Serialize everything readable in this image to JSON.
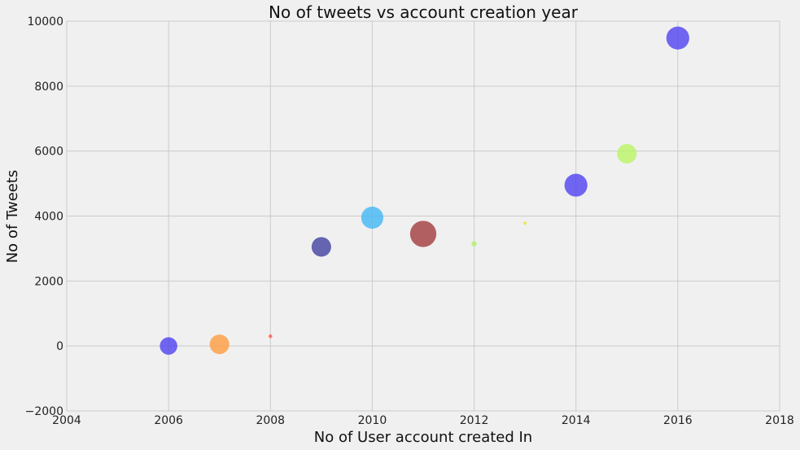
{
  "chart_data": {
    "type": "scatter",
    "title": "No of tweets vs account creation year",
    "xlabel": "No of User account created In",
    "ylabel": "No of Tweets",
    "xlim": [
      2004,
      2018
    ],
    "ylim": [
      -2000,
      10000
    ],
    "x_ticks": [
      "2004",
      "2006",
      "2008",
      "2010",
      "2012",
      "2014",
      "2016",
      "2018"
    ],
    "y_ticks": [
      "−2000",
      "0",
      "2000",
      "4000",
      "6000",
      "8000",
      "10000"
    ],
    "grid": true,
    "background_color": "#f0f0f0",
    "grid_color": "#cbcbcb",
    "points": [
      {
        "x": 2006,
        "y": 0,
        "color": "#4a3ef0",
        "size_rel": 0.42
      },
      {
        "x": 2007,
        "y": 50,
        "color": "#ff9a3c",
        "size_rel": 0.47
      },
      {
        "x": 2008,
        "y": 300,
        "color": "#ff5a3c",
        "size_rel": 0.09
      },
      {
        "x": 2009,
        "y": 3050,
        "color": "#3c3c9e",
        "size_rel": 0.47
      },
      {
        "x": 2010,
        "y": 3950,
        "color": "#3cb6f5",
        "size_rel": 0.53
      },
      {
        "x": 2011,
        "y": 3450,
        "color": "#a0363a",
        "size_rel": 0.63
      },
      {
        "x": 2012,
        "y": 3150,
        "color": "#b5f06a",
        "size_rel": 0.13
      },
      {
        "x": 2013,
        "y": 3780,
        "color": "#e6e632",
        "size_rel": 0.08
      },
      {
        "x": 2014,
        "y": 4950,
        "color": "#4a3ef0",
        "size_rel": 0.55
      },
      {
        "x": 2015,
        "y": 5920,
        "color": "#b9f562",
        "size_rel": 0.47
      },
      {
        "x": 2016,
        "y": 9480,
        "color": "#4a3ef0",
        "size_rel": 0.55
      }
    ]
  }
}
